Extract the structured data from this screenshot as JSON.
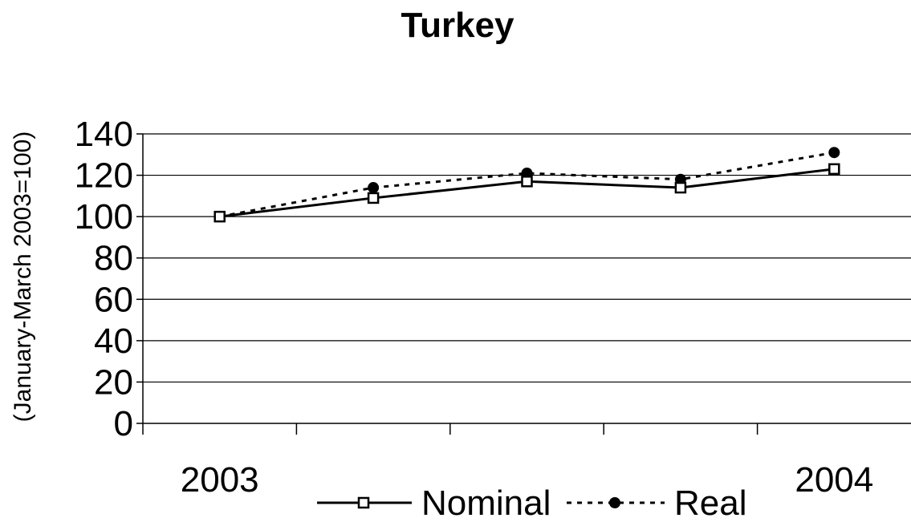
{
  "chart_data": {
    "type": "line",
    "title": "Turkey",
    "xlabel": "",
    "ylabel": "(January-March 2003=100)",
    "x_tick_labels": [
      "2003",
      "",
      "",
      "",
      "2004"
    ],
    "y_ticks": [
      0,
      20,
      40,
      60,
      80,
      100,
      120,
      140
    ],
    "ylim": [
      0,
      140
    ],
    "grid": true,
    "legend_position": "bottom",
    "series": [
      {
        "name": "Nominal",
        "values": [
          100,
          109,
          117,
          114,
          123
        ],
        "color": "#000000",
        "line": "solid",
        "marker": "open-square"
      },
      {
        "name": "Real",
        "values": [
          100,
          114,
          121,
          118,
          131
        ],
        "color": "#000000",
        "line": "dotted",
        "marker": "filled-circle"
      }
    ]
  }
}
